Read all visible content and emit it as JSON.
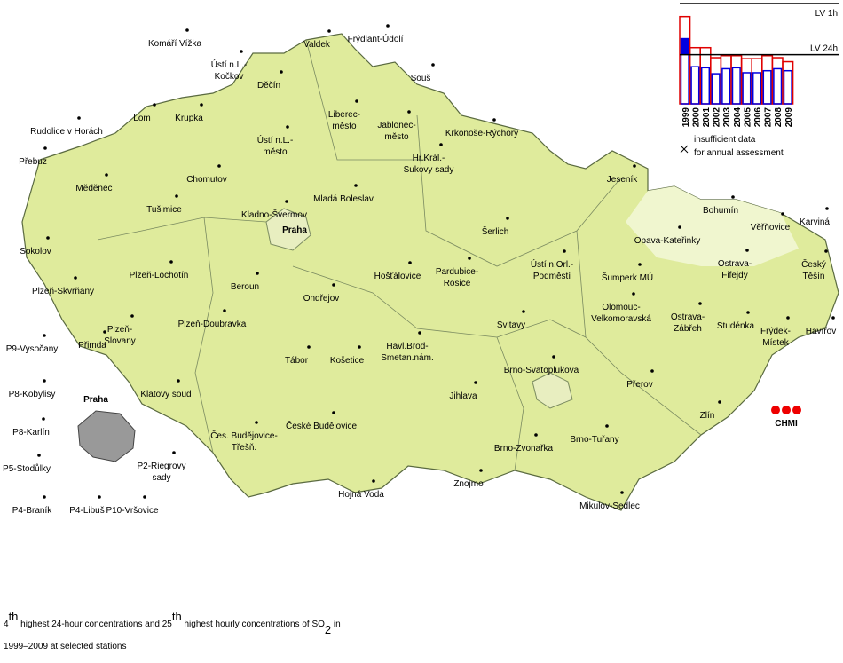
{
  "legend": {
    "lv_1h_label": "LV 1h",
    "lv_24h_label": "LV 24h",
    "ylim": [
      0,
      100
    ],
    "lv_1h": 100,
    "lv_24h": 49,
    "years": [
      "1999",
      "2000",
      "2001",
      "2002",
      "2003",
      "2004",
      "2005",
      "2006",
      "2007",
      "2008",
      "2009"
    ],
    "hourly": [
      87,
      56,
      56,
      46,
      48,
      48,
      45,
      45,
      48,
      46,
      42
    ],
    "daily": [
      65,
      37,
      36,
      30,
      35,
      36,
      31,
      31,
      33,
      35,
      33
    ],
    "hourly_color": "#e00000",
    "daily_color": "#0000e0",
    "note_lines": [
      "insufficient data",
      "for annual assessment"
    ]
  },
  "stations": [
    {
      "lines": [
        "Komáří Vížka"
      ]
    },
    {
      "lines": [
        "Ústí n.L.-",
        "Kočkov"
      ]
    },
    {
      "lines": [
        "Valdek"
      ]
    },
    {
      "lines": [
        "Frýdlant-Údolí"
      ]
    },
    {
      "lines": [
        "Souš"
      ]
    },
    {
      "lines": [
        "Děčín"
      ]
    },
    {
      "lines": [
        "Lom"
      ]
    },
    {
      "lines": [
        "Krupka"
      ]
    },
    {
      "lines": [
        "Rudolice v Horách"
      ]
    },
    {
      "lines": [
        "Liberec-",
        "město"
      ]
    },
    {
      "lines": [
        "Jablonec-",
        "město"
      ]
    },
    {
      "lines": [
        "Krkonoše-Rýchory"
      ]
    },
    {
      "lines": [
        "Ústí n.L.-",
        "město"
      ]
    },
    {
      "lines": [
        "Přebuz"
      ]
    },
    {
      "lines": [
        "Chomutov"
      ]
    },
    {
      "lines": [
        "Měděnec"
      ]
    },
    {
      "lines": [
        "Hr.Král.-",
        "Sukovy sady"
      ]
    },
    {
      "lines": [
        "Jeseník"
      ]
    },
    {
      "lines": [
        "Tušimice"
      ]
    },
    {
      "lines": [
        "Kladno-Švermov"
      ]
    },
    {
      "lines": [
        "Mladá Boleslav"
      ]
    },
    {
      "lines": [
        "Bohumín"
      ]
    },
    {
      "lines": [
        "Věřňovice"
      ]
    },
    {
      "lines": [
        "Karviná"
      ]
    },
    {
      "lines": [
        "Šerlich"
      ]
    },
    {
      "lines": [
        "Sokolov"
      ]
    },
    {
      "lines": [
        "Opava-Kateřinky"
      ]
    },
    {
      "lines": [
        "Ostrava-",
        "Fifejdy"
      ]
    },
    {
      "lines": [
        "Český",
        "Těšín"
      ]
    },
    {
      "lines": [
        "Plzeň-Lochotín"
      ]
    },
    {
      "lines": [
        "Ústí n.Orl.-",
        "Podměstí"
      ]
    },
    {
      "lines": [
        "Hošťálovice"
      ]
    },
    {
      "lines": [
        "Pardubice-",
        "Rosice"
      ]
    },
    {
      "lines": [
        "Šumperk MÚ"
      ]
    },
    {
      "lines": [
        "Plzeň-Skvrňany"
      ]
    },
    {
      "lines": [
        "Beroun"
      ]
    },
    {
      "lines": [
        "Ondřejov"
      ]
    },
    {
      "lines": [
        "Ostrava-",
        "Zábřeh"
      ]
    },
    {
      "lines": [
        "Studénka"
      ]
    },
    {
      "lines": [
        "Frýdek-",
        "Místek"
      ]
    },
    {
      "lines": [
        "Havířov"
      ]
    },
    {
      "lines": [
        "Olomouc-",
        "Velkomoravská"
      ]
    },
    {
      "lines": [
        "Svitavy"
      ]
    },
    {
      "lines": [
        "Plzeň-Doubravka"
      ]
    },
    {
      "lines": [
        "P9-Vysočany"
      ]
    },
    {
      "lines": [
        "Přimda"
      ]
    },
    {
      "lines": [
        "Plzeň-",
        "Slovany"
      ]
    },
    {
      "lines": [
        "Tábor"
      ]
    },
    {
      "lines": [
        "Košetice"
      ]
    },
    {
      "lines": [
        "Havl.Brod-",
        "Smetan.nám."
      ]
    },
    {
      "lines": [
        "Brno-Svatoplukova"
      ]
    },
    {
      "lines": [
        "P8-Kobylisy"
      ]
    },
    {
      "lines": [
        "Klatovy soud"
      ]
    },
    {
      "lines": [
        "Jihlava"
      ]
    },
    {
      "lines": [
        "Přerov"
      ]
    },
    {
      "lines": [
        "Zlín"
      ]
    },
    {
      "lines": [
        "P8-Karlín"
      ]
    },
    {
      "lines": [
        "Čes. Budějovice-",
        "Třešň."
      ]
    },
    {
      "lines": [
        "České Budějovice"
      ]
    },
    {
      "lines": [
        "Brno-Tuřany"
      ]
    },
    {
      "lines": [
        "Brno-Zvonařka"
      ]
    },
    {
      "lines": [
        "P5-Stodůlky"
      ]
    },
    {
      "lines": [
        "P2-Riegrovy",
        "sady"
      ]
    },
    {
      "lines": [
        "Znojmo"
      ]
    },
    {
      "lines": [
        "Hojná Voda"
      ]
    },
    {
      "lines": [
        "Mikulov-Sedlec"
      ]
    },
    {
      "lines": [
        "P4-Braník"
      ]
    },
    {
      "lines": [
        "P4-Libuš"
      ]
    },
    {
      "lines": [
        "P10-Vršovice"
      ]
    }
  ],
  "cities": [
    "Praha",
    "Praha"
  ],
  "logo": "CHMI",
  "caption": {
    "line1": [
      {
        "text": "4",
        "style": "normal"
      },
      {
        "text": "th",
        "style": "sup"
      },
      {
        "text": " highest 24-hour concentrations and 25",
        "style": "normal"
      },
      {
        "text": "th",
        "style": "sup"
      },
      {
        "text": " highest hourly concentrations of SO",
        "style": "normal"
      },
      {
        "text": "2",
        "style": "sub"
      },
      {
        "text": " in",
        "style": "normal"
      }
    ],
    "line2": "1999–2009 at selected stations"
  }
}
